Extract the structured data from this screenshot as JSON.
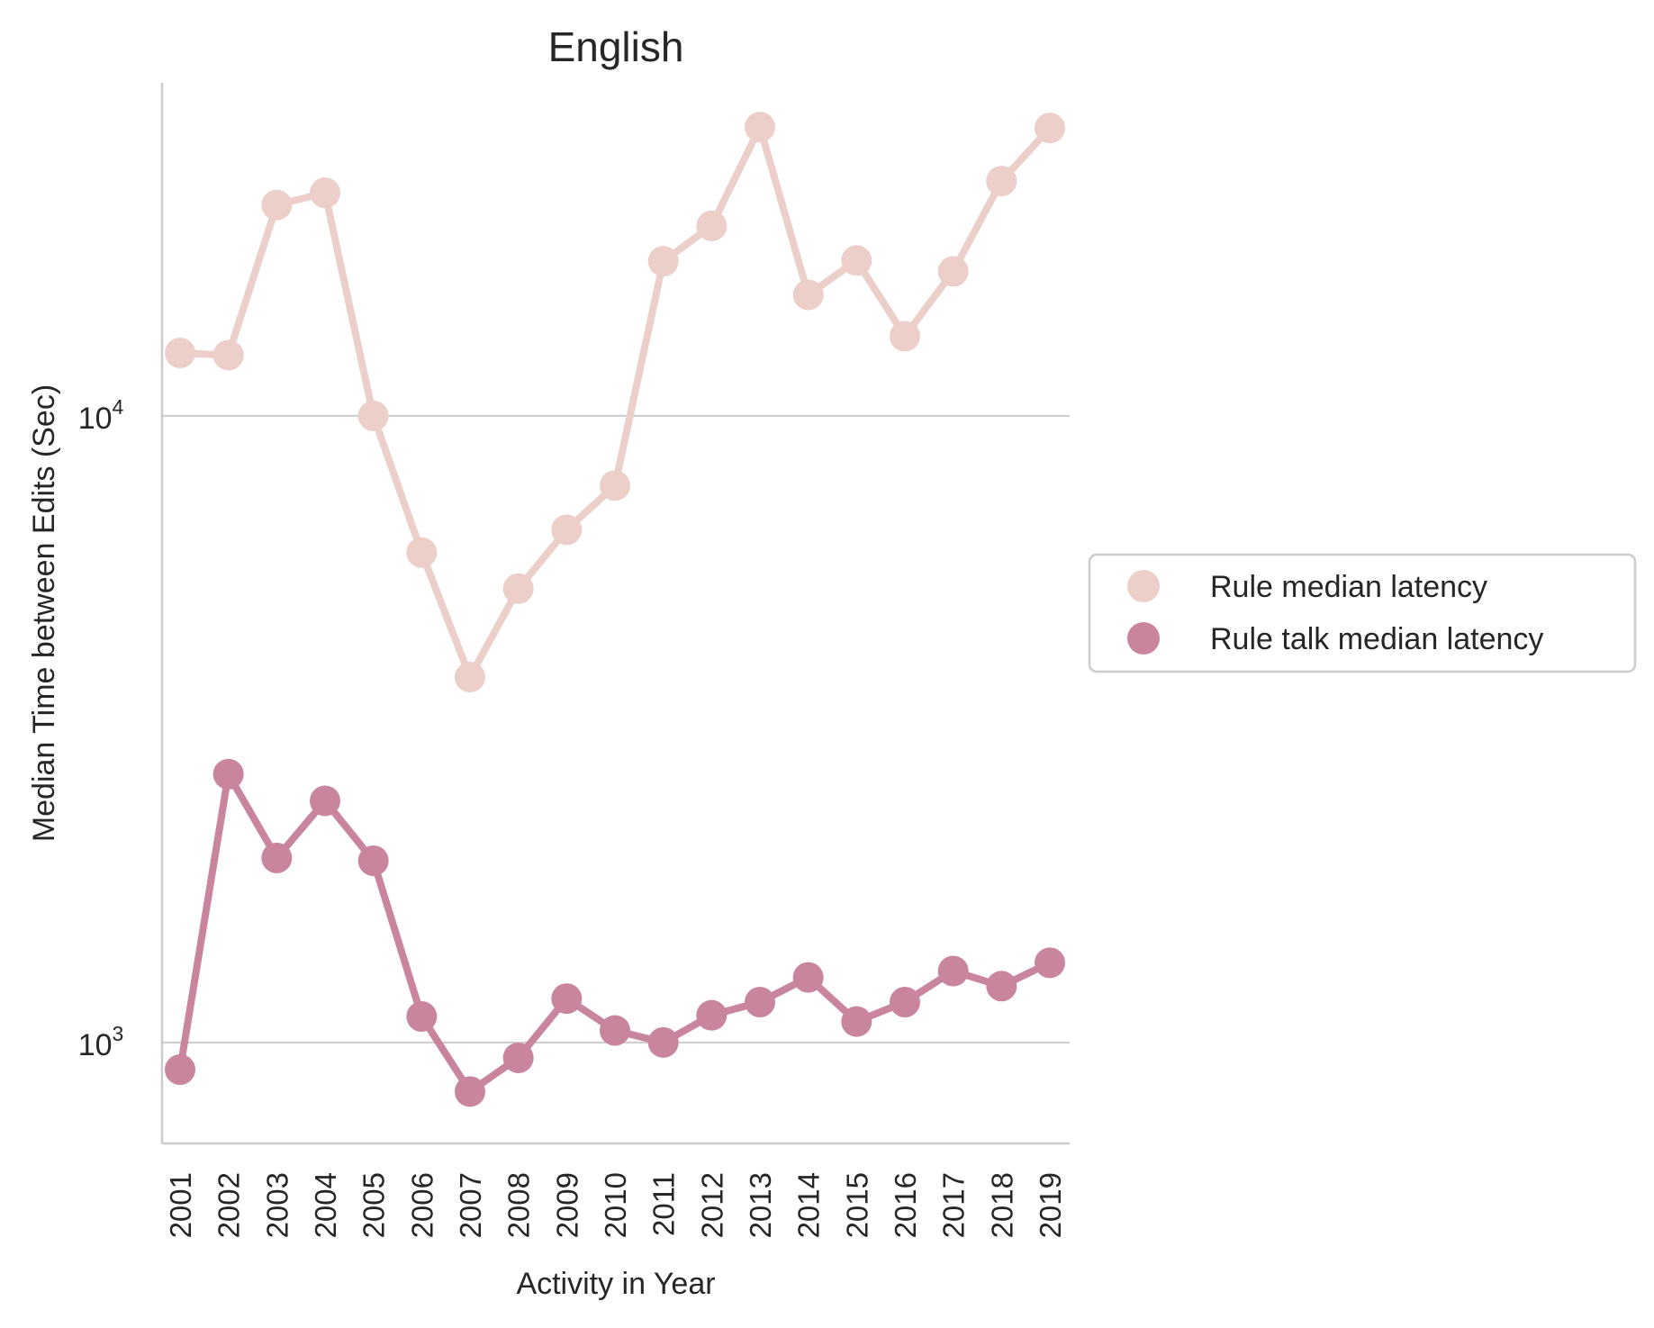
{
  "chart_data": {
    "type": "line",
    "title": "English",
    "xlabel": "Activity in Year",
    "ylabel": "Median Time between Edits (Sec)",
    "yscale": "log",
    "ylim": [
      690,
      34000
    ],
    "yticks": [
      {
        "value": 1000,
        "base": "10",
        "exp": "3"
      },
      {
        "value": 10000,
        "base": "10",
        "exp": "4"
      }
    ],
    "grid": "horizontal",
    "legend_position": "right",
    "categories": [
      "2001",
      "2002",
      "2003",
      "2004",
      "2005",
      "2006",
      "2007",
      "2008",
      "2009",
      "2010",
      "2011",
      "2012",
      "2013",
      "2014",
      "2015",
      "2016",
      "2017",
      "2018",
      "2019"
    ],
    "series": [
      {
        "name": "Rule median latency",
        "color": "#ebcfc8",
        "values": [
          12600,
          12500,
          21700,
          22700,
          10000,
          6050,
          3830,
          5300,
          6580,
          7740,
          17650,
          20100,
          28900,
          15600,
          17700,
          13400,
          17000,
          23700,
          28800
        ]
      },
      {
        "name": "Rule talk median latency",
        "color": "#c9849e",
        "values": [
          905,
          2680,
          1970,
          2430,
          1950,
          1100,
          835,
          945,
          1175,
          1045,
          1000,
          1105,
          1160,
          1270,
          1080,
          1160,
          1300,
          1230,
          1340
        ]
      }
    ]
  }
}
